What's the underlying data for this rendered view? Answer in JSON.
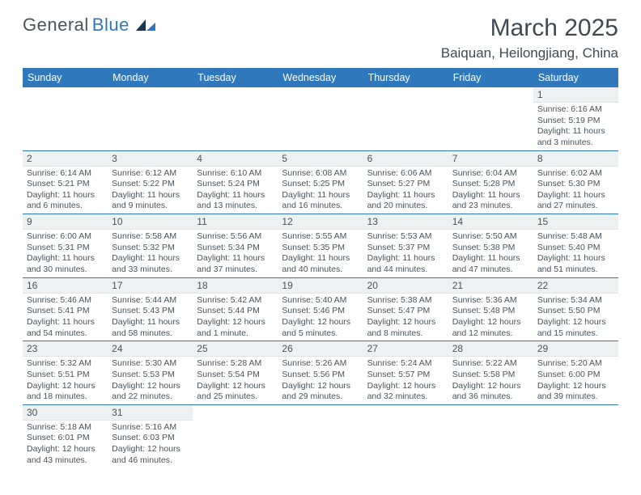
{
  "brand": {
    "part1": "General",
    "part2": "Blue"
  },
  "title": "March 2025",
  "location": "Baiquan, Heilongjiang, China",
  "header_bg": "#2f78bb",
  "header_fg": "#ffffff",
  "daynum_bg": "#eef1f2",
  "cell_border": "#2f78bb",
  "text_color": "#49535a",
  "weekdays": [
    "Sunday",
    "Monday",
    "Tuesday",
    "Wednesday",
    "Thursday",
    "Friday",
    "Saturday"
  ],
  "weeks": [
    [
      null,
      null,
      null,
      null,
      null,
      null,
      {
        "n": "1",
        "sunrise": "6:16 AM",
        "sunset": "5:19 PM",
        "daylight": "11 hours and 3 minutes."
      }
    ],
    [
      {
        "n": "2",
        "sunrise": "6:14 AM",
        "sunset": "5:21 PM",
        "daylight": "11 hours and 6 minutes."
      },
      {
        "n": "3",
        "sunrise": "6:12 AM",
        "sunset": "5:22 PM",
        "daylight": "11 hours and 9 minutes."
      },
      {
        "n": "4",
        "sunrise": "6:10 AM",
        "sunset": "5:24 PM",
        "daylight": "11 hours and 13 minutes."
      },
      {
        "n": "5",
        "sunrise": "6:08 AM",
        "sunset": "5:25 PM",
        "daylight": "11 hours and 16 minutes."
      },
      {
        "n": "6",
        "sunrise": "6:06 AM",
        "sunset": "5:27 PM",
        "daylight": "11 hours and 20 minutes."
      },
      {
        "n": "7",
        "sunrise": "6:04 AM",
        "sunset": "5:28 PM",
        "daylight": "11 hours and 23 minutes."
      },
      {
        "n": "8",
        "sunrise": "6:02 AM",
        "sunset": "5:30 PM",
        "daylight": "11 hours and 27 minutes."
      }
    ],
    [
      {
        "n": "9",
        "sunrise": "6:00 AM",
        "sunset": "5:31 PM",
        "daylight": "11 hours and 30 minutes."
      },
      {
        "n": "10",
        "sunrise": "5:58 AM",
        "sunset": "5:32 PM",
        "daylight": "11 hours and 33 minutes."
      },
      {
        "n": "11",
        "sunrise": "5:56 AM",
        "sunset": "5:34 PM",
        "daylight": "11 hours and 37 minutes."
      },
      {
        "n": "12",
        "sunrise": "5:55 AM",
        "sunset": "5:35 PM",
        "daylight": "11 hours and 40 minutes."
      },
      {
        "n": "13",
        "sunrise": "5:53 AM",
        "sunset": "5:37 PM",
        "daylight": "11 hours and 44 minutes."
      },
      {
        "n": "14",
        "sunrise": "5:50 AM",
        "sunset": "5:38 PM",
        "daylight": "11 hours and 47 minutes."
      },
      {
        "n": "15",
        "sunrise": "5:48 AM",
        "sunset": "5:40 PM",
        "daylight": "11 hours and 51 minutes."
      }
    ],
    [
      {
        "n": "16",
        "sunrise": "5:46 AM",
        "sunset": "5:41 PM",
        "daylight": "11 hours and 54 minutes."
      },
      {
        "n": "17",
        "sunrise": "5:44 AM",
        "sunset": "5:43 PM",
        "daylight": "11 hours and 58 minutes."
      },
      {
        "n": "18",
        "sunrise": "5:42 AM",
        "sunset": "5:44 PM",
        "daylight": "12 hours and 1 minute."
      },
      {
        "n": "19",
        "sunrise": "5:40 AM",
        "sunset": "5:46 PM",
        "daylight": "12 hours and 5 minutes."
      },
      {
        "n": "20",
        "sunrise": "5:38 AM",
        "sunset": "5:47 PM",
        "daylight": "12 hours and 8 minutes."
      },
      {
        "n": "21",
        "sunrise": "5:36 AM",
        "sunset": "5:48 PM",
        "daylight": "12 hours and 12 minutes."
      },
      {
        "n": "22",
        "sunrise": "5:34 AM",
        "sunset": "5:50 PM",
        "daylight": "12 hours and 15 minutes."
      }
    ],
    [
      {
        "n": "23",
        "sunrise": "5:32 AM",
        "sunset": "5:51 PM",
        "daylight": "12 hours and 18 minutes."
      },
      {
        "n": "24",
        "sunrise": "5:30 AM",
        "sunset": "5:53 PM",
        "daylight": "12 hours and 22 minutes."
      },
      {
        "n": "25",
        "sunrise": "5:28 AM",
        "sunset": "5:54 PM",
        "daylight": "12 hours and 25 minutes."
      },
      {
        "n": "26",
        "sunrise": "5:26 AM",
        "sunset": "5:56 PM",
        "daylight": "12 hours and 29 minutes."
      },
      {
        "n": "27",
        "sunrise": "5:24 AM",
        "sunset": "5:57 PM",
        "daylight": "12 hours and 32 minutes."
      },
      {
        "n": "28",
        "sunrise": "5:22 AM",
        "sunset": "5:58 PM",
        "daylight": "12 hours and 36 minutes."
      },
      {
        "n": "29",
        "sunrise": "5:20 AM",
        "sunset": "6:00 PM",
        "daylight": "12 hours and 39 minutes."
      }
    ],
    [
      {
        "n": "30",
        "sunrise": "5:18 AM",
        "sunset": "6:01 PM",
        "daylight": "12 hours and 43 minutes."
      },
      {
        "n": "31",
        "sunrise": "5:16 AM",
        "sunset": "6:03 PM",
        "daylight": "12 hours and 46 minutes."
      },
      null,
      null,
      null,
      null,
      null
    ]
  ]
}
